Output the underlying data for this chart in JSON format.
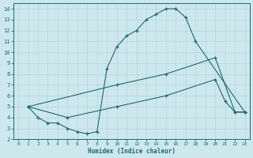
{
  "background_color": "#cde8ed",
  "line_color": "#1a6b6b",
  "grid_color": "#b8d8de",
  "xlabel": "Humidex (Indice chaleur)",
  "xlim": [
    -0.5,
    23.5
  ],
  "ylim": [
    2,
    14.5
  ],
  "xticks": [
    0,
    1,
    2,
    3,
    4,
    5,
    6,
    7,
    8,
    9,
    10,
    11,
    12,
    13,
    14,
    15,
    16,
    17,
    18,
    19,
    20,
    21,
    22,
    23
  ],
  "yticks": [
    2,
    3,
    4,
    5,
    6,
    7,
    8,
    9,
    10,
    11,
    12,
    13,
    14
  ],
  "line1": {
    "x": [
      1,
      2,
      3,
      4,
      5,
      6,
      7,
      8,
      9,
      10,
      11,
      12,
      13,
      14,
      15,
      16,
      17,
      18,
      23
    ],
    "y": [
      5,
      4,
      3.5,
      3.5,
      3,
      2.7,
      2.5,
      2.7,
      8.5,
      10.5,
      11.5,
      12,
      13,
      13.5,
      14,
      14,
      13.2,
      11,
      4.5
    ]
  },
  "line2": {
    "x": [
      1,
      10,
      15,
      20,
      22,
      23
    ],
    "y": [
      5,
      7,
      8,
      9.5,
      4.5,
      4.5
    ]
  },
  "line3": {
    "x": [
      1,
      5,
      10,
      15,
      20,
      21,
      22,
      23
    ],
    "y": [
      5,
      4,
      5,
      6,
      7.5,
      5.5,
      4.5,
      4.5
    ]
  }
}
